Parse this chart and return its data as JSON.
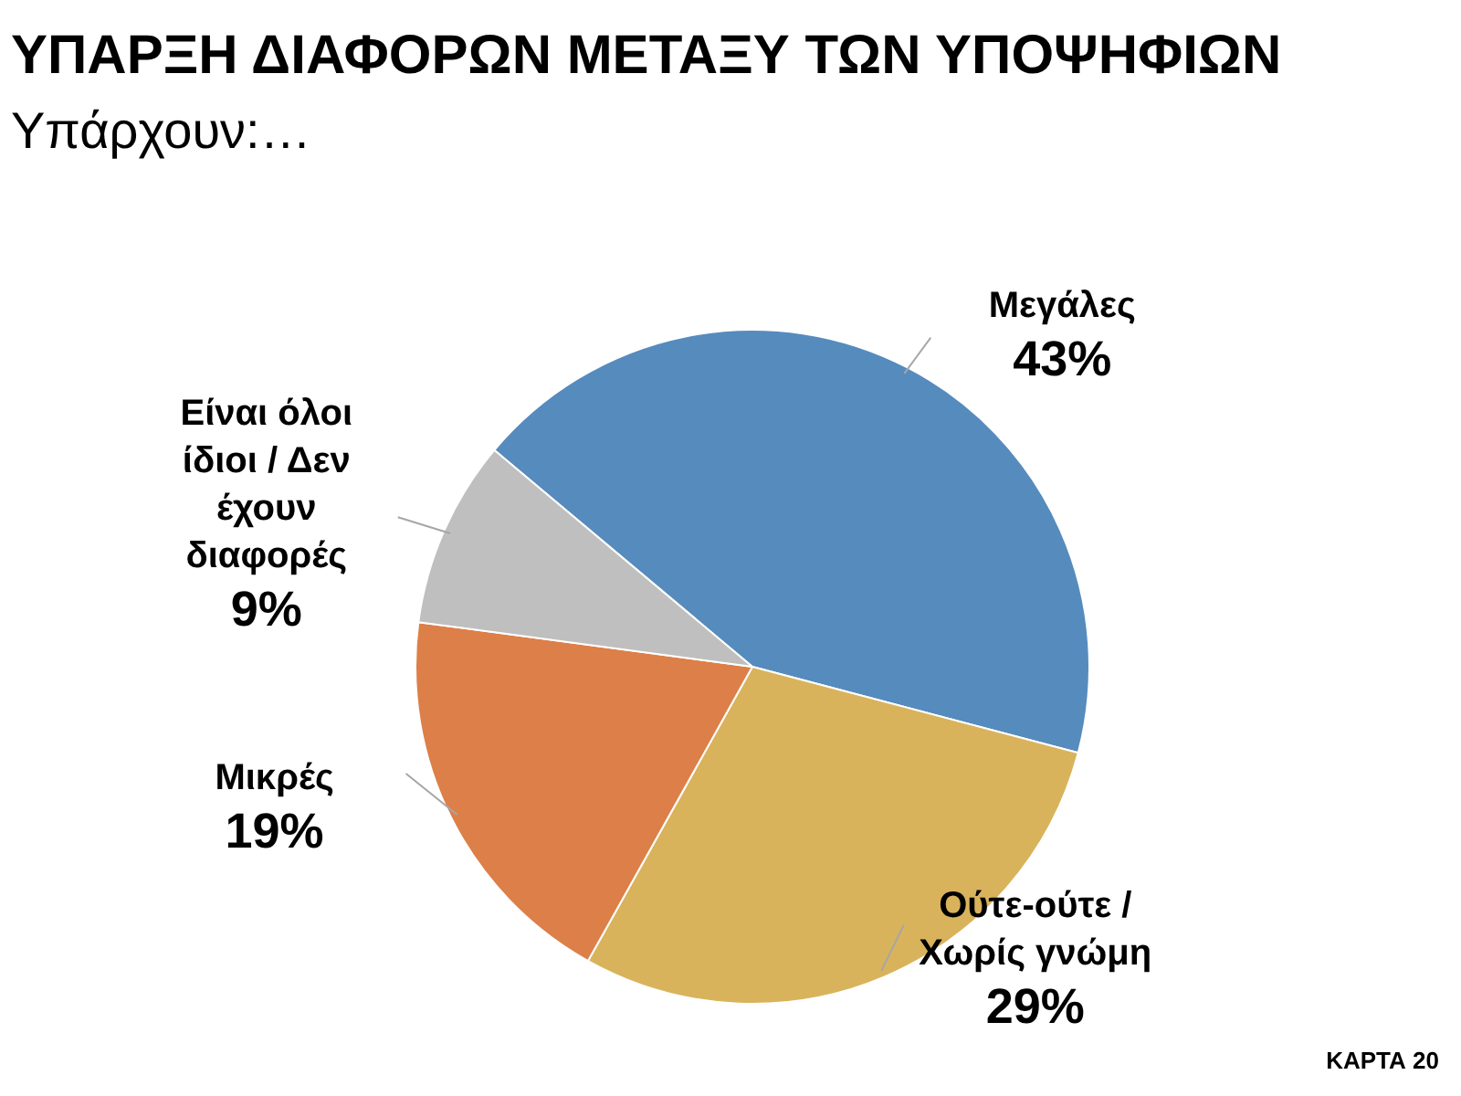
{
  "chart_data": {
    "type": "pie",
    "title": "ΥΠΑΡΞΗ ΔΙΑΦΟΡΩΝ ΜΕΤΑΞΥ ΤΩΝ ΥΠΟΨΗΦΙΩΝ",
    "subtitle": "Υπάρχουν:…",
    "categories": [
      "Μεγάλες",
      "Ούτε-ούτε / Χωρίς γνώμη",
      "Μικρές",
      "Είναι όλοι ίδιοι / Δεν έχουν διαφορές"
    ],
    "values": [
      43,
      29,
      19,
      9
    ],
    "value_labels": [
      "43%",
      "29%",
      "19%",
      "9%"
    ],
    "colors": [
      "#568bbd",
      "#d9b35c",
      "#dd7f48",
      "#bfbfbf"
    ],
    "legend": false,
    "annotations": [
      "ΚΑΡΤΑ 20"
    ]
  }
}
